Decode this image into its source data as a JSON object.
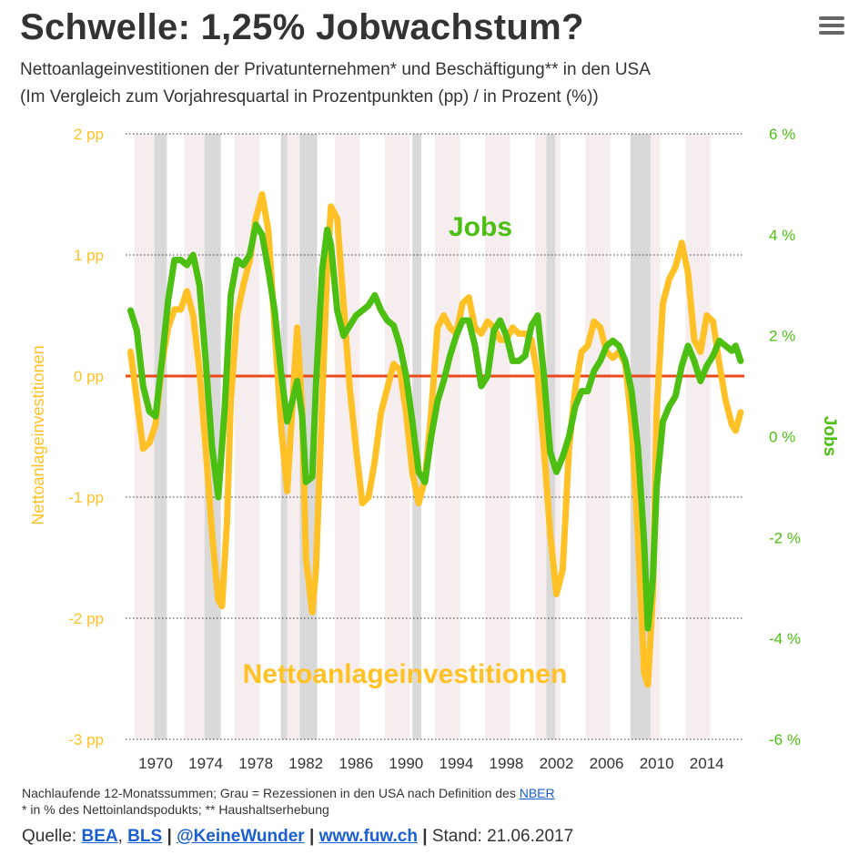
{
  "header": {
    "title": "Schwelle: 1,25% Jobwachstum?",
    "subtitle_1": "Nettoanlageinvestitionen der Privatunternehmen* und Beschäftigung** in den USA",
    "subtitle_2": "(Im Vergleich zum Vorjahresquartal in Prozentpunkten (pp) / in Prozent (%))",
    "menu_icon": "hamburger-menu-icon"
  },
  "colors": {
    "investment": "#ffc125",
    "jobs": "#4cbf12",
    "zero_line": "#e84a1c",
    "recession": "#d9d9d9",
    "stripe": "#f6eeee",
    "text": "#333333",
    "link": "#1a5fd1"
  },
  "chart_data": {
    "type": "line",
    "x_tick_labels": [
      "1970",
      "1974",
      "1978",
      "1982",
      "1986",
      "1990",
      "1994",
      "1998",
      "2002",
      "2006",
      "2010",
      "2014"
    ],
    "x_tick_values": [
      1970,
      1974,
      1978,
      1982,
      1986,
      1990,
      1994,
      1998,
      2002,
      2006,
      2010,
      2014
    ],
    "xlim": [
      1967.6,
      2017.0
    ],
    "left_axis": {
      "label": "Nettoanlageinvestitionen",
      "unit": "pp",
      "ylim": [
        -3,
        2
      ],
      "tick_labels": [
        "2 pp",
        "1 pp",
        "0 pp",
        "-1 pp",
        "-2 pp",
        "-3 pp"
      ],
      "tick_values": [
        2,
        1,
        0,
        -1,
        -2,
        -3
      ]
    },
    "right_axis": {
      "label": "Jobs",
      "unit": "%",
      "ylim": [
        -6,
        6
      ],
      "tick_labels": [
        "6 %",
        "4 %",
        "2 %",
        "0 %",
        "-2 %",
        "-4 %",
        "-6 %"
      ],
      "tick_values": [
        6,
        4,
        2,
        0,
        -2,
        -4,
        -6
      ]
    },
    "recessions": [
      [
        1969.9,
        1970.9
      ],
      [
        1973.9,
        1975.2
      ],
      [
        1980.0,
        1980.5
      ],
      [
        1981.5,
        1982.9
      ],
      [
        1990.5,
        1991.2
      ],
      [
        2001.2,
        2001.9
      ],
      [
        2007.9,
        2009.5
      ]
    ],
    "annotations": {
      "jobs_label": "Jobs",
      "investment_label": "Nettoanlageinvestitionen"
    },
    "series": [
      {
        "name": "Nettoanlageinvestitionen",
        "axis": "left",
        "points": [
          [
            1968.0,
            0.2
          ],
          [
            1968.5,
            -0.2
          ],
          [
            1969.0,
            -0.6
          ],
          [
            1969.5,
            -0.55
          ],
          [
            1970.0,
            -0.4
          ],
          [
            1970.5,
            0.1
          ],
          [
            1971.0,
            0.4
          ],
          [
            1971.5,
            0.55
          ],
          [
            1972.0,
            0.55
          ],
          [
            1972.5,
            0.7
          ],
          [
            1973.0,
            0.5
          ],
          [
            1973.5,
            0.05
          ],
          [
            1974.0,
            -0.6
          ],
          [
            1974.5,
            -1.3
          ],
          [
            1975.0,
            -1.85
          ],
          [
            1975.3,
            -1.9
          ],
          [
            1975.7,
            -1.2
          ],
          [
            1976.0,
            -0.2
          ],
          [
            1976.5,
            0.5
          ],
          [
            1977.0,
            0.75
          ],
          [
            1977.5,
            0.95
          ],
          [
            1978.0,
            1.3
          ],
          [
            1978.5,
            1.5
          ],
          [
            1979.0,
            1.2
          ],
          [
            1979.5,
            0.4
          ],
          [
            1980.0,
            -0.4
          ],
          [
            1980.5,
            -0.95
          ],
          [
            1981.0,
            -0.1
          ],
          [
            1981.3,
            0.4
          ],
          [
            1981.7,
            -0.3
          ],
          [
            1982.0,
            -1.5
          ],
          [
            1982.5,
            -1.95
          ],
          [
            1982.8,
            -1.6
          ],
          [
            1983.3,
            -0.2
          ],
          [
            1983.7,
            0.9
          ],
          [
            1984.0,
            1.4
          ],
          [
            1984.5,
            1.3
          ],
          [
            1985.0,
            0.6
          ],
          [
            1985.5,
            -0.1
          ],
          [
            1986.0,
            -0.6
          ],
          [
            1986.5,
            -1.05
          ],
          [
            1987.0,
            -1.0
          ],
          [
            1987.5,
            -0.7
          ],
          [
            1988.0,
            -0.3
          ],
          [
            1988.5,
            -0.1
          ],
          [
            1989.0,
            0.1
          ],
          [
            1989.5,
            0.05
          ],
          [
            1990.0,
            -0.3
          ],
          [
            1990.5,
            -0.8
          ],
          [
            1991.0,
            -1.05
          ],
          [
            1991.5,
            -0.85
          ],
          [
            1992.0,
            -0.3
          ],
          [
            1992.5,
            0.4
          ],
          [
            1993.0,
            0.5
          ],
          [
            1993.5,
            0.4
          ],
          [
            1994.0,
            0.35
          ],
          [
            1994.5,
            0.6
          ],
          [
            1995.0,
            0.65
          ],
          [
            1995.5,
            0.4
          ],
          [
            1996.0,
            0.35
          ],
          [
            1996.5,
            0.45
          ],
          [
            1997.0,
            0.4
          ],
          [
            1997.5,
            0.3
          ],
          [
            1998.0,
            0.3
          ],
          [
            1998.5,
            0.4
          ],
          [
            1999.0,
            0.35
          ],
          [
            1999.5,
            0.35
          ],
          [
            2000.0,
            0.3
          ],
          [
            2000.5,
            0.0
          ],
          [
            2001.0,
            -0.6
          ],
          [
            2001.5,
            -1.3
          ],
          [
            2002.0,
            -1.8
          ],
          [
            2002.5,
            -1.6
          ],
          [
            2003.0,
            -0.6
          ],
          [
            2003.5,
            -0.1
          ],
          [
            2004.0,
            0.2
          ],
          [
            2004.5,
            0.25
          ],
          [
            2005.0,
            0.45
          ],
          [
            2005.5,
            0.4
          ],
          [
            2006.0,
            0.2
          ],
          [
            2006.5,
            0.15
          ],
          [
            2007.0,
            0.2
          ],
          [
            2007.5,
            0.1
          ],
          [
            2008.0,
            -0.4
          ],
          [
            2008.5,
            -1.3
          ],
          [
            2009.0,
            -2.45
          ],
          [
            2009.3,
            -2.55
          ],
          [
            2009.7,
            -1.8
          ],
          [
            2010.0,
            -0.3
          ],
          [
            2010.5,
            0.6
          ],
          [
            2011.0,
            0.8
          ],
          [
            2011.5,
            0.9
          ],
          [
            2012.0,
            1.1
          ],
          [
            2012.5,
            0.85
          ],
          [
            2013.0,
            0.3
          ],
          [
            2013.5,
            0.2
          ],
          [
            2014.0,
            0.5
          ],
          [
            2014.5,
            0.45
          ],
          [
            2015.0,
            0.1
          ],
          [
            2015.5,
            -0.2
          ],
          [
            2016.0,
            -0.4
          ],
          [
            2016.3,
            -0.45
          ],
          [
            2016.7,
            -0.3
          ]
        ]
      },
      {
        "name": "Jobs",
        "axis": "right",
        "points": [
          [
            1968.0,
            2.5
          ],
          [
            1968.5,
            2.1
          ],
          [
            1969.0,
            1.0
          ],
          [
            1969.5,
            0.5
          ],
          [
            1970.0,
            0.4
          ],
          [
            1970.5,
            1.5
          ],
          [
            1971.0,
            2.7
          ],
          [
            1971.5,
            3.5
          ],
          [
            1972.0,
            3.5
          ],
          [
            1972.5,
            3.4
          ],
          [
            1973.0,
            3.6
          ],
          [
            1973.5,
            3.0
          ],
          [
            1974.0,
            1.5
          ],
          [
            1974.5,
            -0.2
          ],
          [
            1975.0,
            -1.2
          ],
          [
            1975.5,
            0.5
          ],
          [
            1976.0,
            2.8
          ],
          [
            1976.5,
            3.5
          ],
          [
            1977.0,
            3.4
          ],
          [
            1977.5,
            3.6
          ],
          [
            1978.0,
            4.2
          ],
          [
            1978.5,
            4.0
          ],
          [
            1979.0,
            3.3
          ],
          [
            1979.5,
            2.5
          ],
          [
            1980.0,
            1.3
          ],
          [
            1980.5,
            0.3
          ],
          [
            1981.0,
            0.8
          ],
          [
            1981.3,
            1.1
          ],
          [
            1981.7,
            0.4
          ],
          [
            1982.0,
            -0.9
          ],
          [
            1982.5,
            -0.8
          ],
          [
            1982.8,
            1.0
          ],
          [
            1983.3,
            3.3
          ],
          [
            1983.7,
            4.1
          ],
          [
            1984.0,
            3.8
          ],
          [
            1984.5,
            2.5
          ],
          [
            1985.0,
            2.0
          ],
          [
            1985.5,
            2.2
          ],
          [
            1986.0,
            2.4
          ],
          [
            1986.5,
            2.5
          ],
          [
            1987.0,
            2.6
          ],
          [
            1987.5,
            2.8
          ],
          [
            1988.0,
            2.5
          ],
          [
            1988.5,
            2.3
          ],
          [
            1989.0,
            2.2
          ],
          [
            1989.5,
            1.8
          ],
          [
            1990.0,
            1.2
          ],
          [
            1990.5,
            0.3
          ],
          [
            1991.0,
            -0.7
          ],
          [
            1991.5,
            -0.9
          ],
          [
            1992.0,
            0.0
          ],
          [
            1992.5,
            0.7
          ],
          [
            1993.0,
            1.1
          ],
          [
            1993.5,
            1.6
          ],
          [
            1994.0,
            2.0
          ],
          [
            1994.5,
            2.3
          ],
          [
            1995.0,
            2.3
          ],
          [
            1995.5,
            1.8
          ],
          [
            1996.0,
            1.0
          ],
          [
            1996.5,
            1.2
          ],
          [
            1997.0,
            2.1
          ],
          [
            1997.5,
            2.3
          ],
          [
            1998.0,
            2.0
          ],
          [
            1998.5,
            1.5
          ],
          [
            1999.0,
            1.5
          ],
          [
            1999.5,
            1.6
          ],
          [
            2000.0,
            2.2
          ],
          [
            2000.5,
            2.4
          ],
          [
            2001.0,
            1.2
          ],
          [
            2001.5,
            -0.3
          ],
          [
            2002.0,
            -0.7
          ],
          [
            2002.5,
            -0.4
          ],
          [
            2003.0,
            0.0
          ],
          [
            2003.5,
            0.6
          ],
          [
            2004.0,
            0.9
          ],
          [
            2004.5,
            0.9
          ],
          [
            2005.0,
            1.3
          ],
          [
            2005.5,
            1.5
          ],
          [
            2006.0,
            1.8
          ],
          [
            2006.5,
            1.9
          ],
          [
            2007.0,
            1.8
          ],
          [
            2007.5,
            1.5
          ],
          [
            2008.0,
            0.9
          ],
          [
            2008.5,
            -0.2
          ],
          [
            2009.0,
            -2.1
          ],
          [
            2009.3,
            -3.8
          ],
          [
            2009.7,
            -2.8
          ],
          [
            2010.0,
            -1.0
          ],
          [
            2010.5,
            0.3
          ],
          [
            2011.0,
            0.6
          ],
          [
            2011.5,
            0.8
          ],
          [
            2012.0,
            1.4
          ],
          [
            2012.5,
            1.8
          ],
          [
            2013.0,
            1.5
          ],
          [
            2013.5,
            1.1
          ],
          [
            2014.0,
            1.4
          ],
          [
            2014.5,
            1.6
          ],
          [
            2015.0,
            1.9
          ],
          [
            2015.5,
            1.8
          ],
          [
            2016.0,
            1.7
          ],
          [
            2016.3,
            1.8
          ],
          [
            2016.7,
            1.5
          ]
        ]
      }
    ]
  },
  "footer": {
    "note_1": "Nachlaufende 12-Monatssummen; Grau = Rezessionen in den USA nach Definition des",
    "note_1_link": "NBER",
    "note_2": "* in % des Nettoinlandspodukts; ** Haushaltserhebung",
    "source_label": "Quelle:",
    "source_bea": "BEA",
    "comma": ",",
    "source_bls": "BLS",
    "separator": "|",
    "twitter": "@KeineWunder",
    "website": "www.fuw.ch",
    "stand": "Stand: 21.06.2017"
  }
}
